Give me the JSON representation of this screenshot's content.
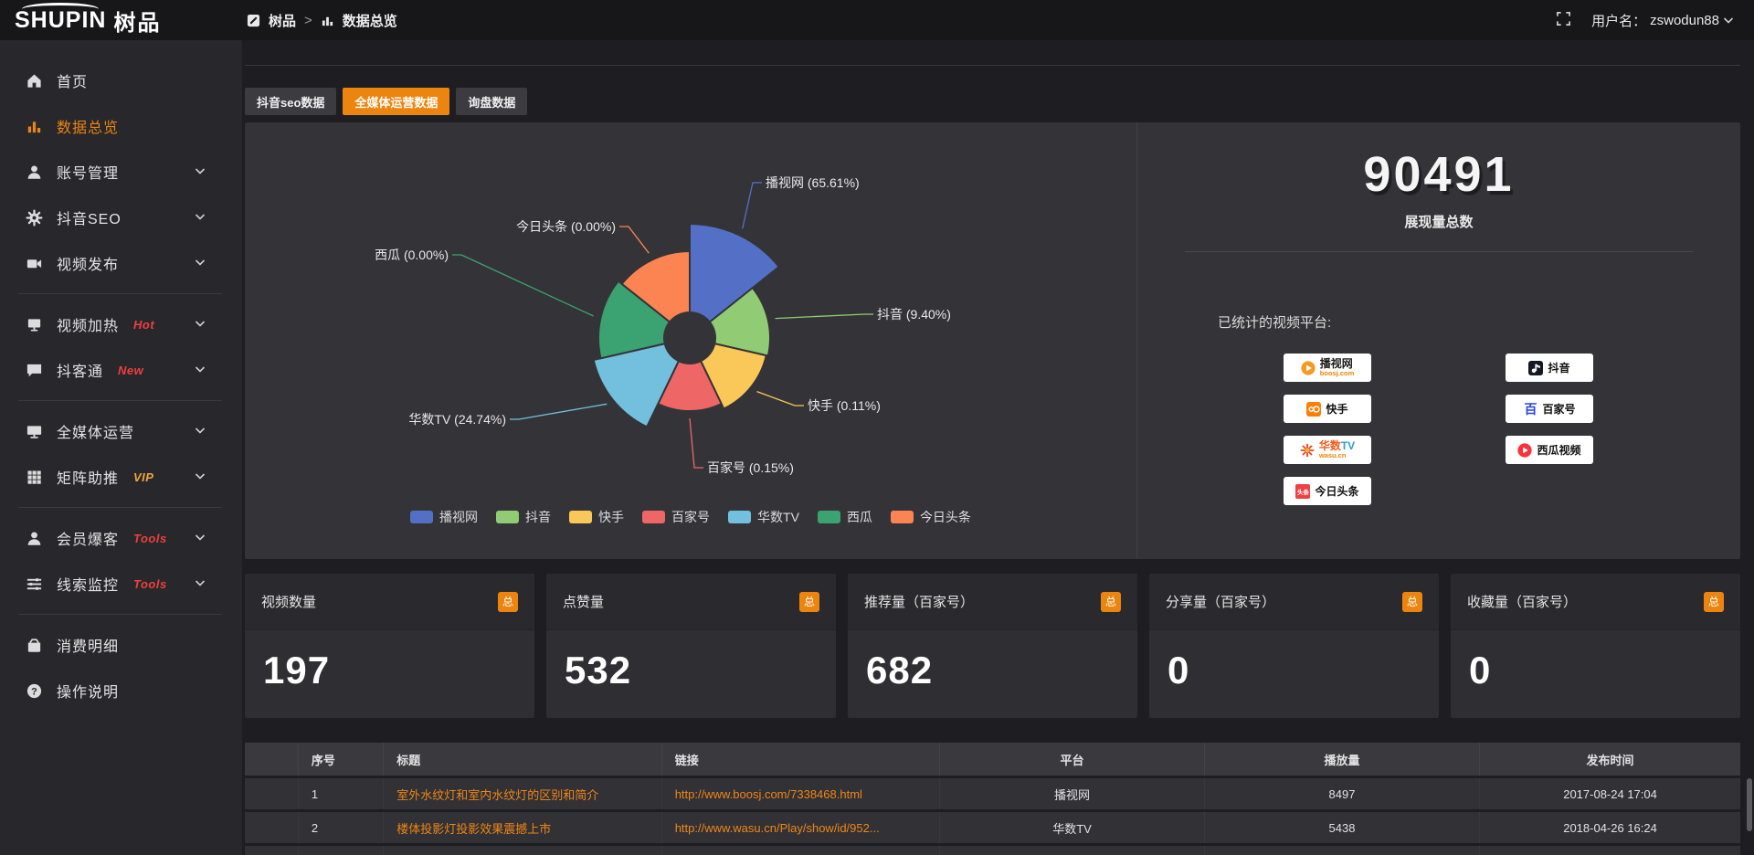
{
  "topbar": {
    "logo_main": "SHUPIN",
    "logo_cn": "树品",
    "breadcrumb": [
      {
        "label": "树品",
        "icon": "app-icon"
      },
      {
        "label": "数据总览",
        "icon": "bars-icon"
      }
    ],
    "breadcrumb_separator": ">",
    "user_label": "用户名：",
    "username": "zswodun88"
  },
  "sidebar": {
    "items": [
      {
        "icon": "home",
        "label": "首页",
        "active": false,
        "chevron": false,
        "badge": "",
        "badge_color": "",
        "divider_after": false
      },
      {
        "icon": "chart",
        "label": "数据总览",
        "active": true,
        "chevron": false,
        "badge": "",
        "badge_color": "",
        "divider_after": false
      },
      {
        "icon": "user",
        "label": "账号管理",
        "active": false,
        "chevron": true,
        "badge": "",
        "badge_color": "",
        "divider_after": false
      },
      {
        "icon": "gear",
        "label": "抖音SEO",
        "active": false,
        "chevron": true,
        "badge": "",
        "badge_color": "",
        "divider_after": false
      },
      {
        "icon": "video",
        "label": "视频发布",
        "active": false,
        "chevron": true,
        "badge": "",
        "badge_color": "",
        "divider_after": true
      },
      {
        "icon": "screen",
        "label": "视频加热",
        "active": false,
        "chevron": true,
        "badge": "Hot",
        "badge_color": "#f03e3e",
        "divider_after": false
      },
      {
        "icon": "chat",
        "label": "抖客通",
        "active": false,
        "chevron": true,
        "badge": "New",
        "badge_color": "#f03e3e",
        "divider_after": true
      },
      {
        "icon": "monitor",
        "label": "全媒体运营",
        "active": false,
        "chevron": true,
        "badge": "",
        "badge_color": "",
        "divider_after": false
      },
      {
        "icon": "grid",
        "label": "矩阵助推",
        "active": false,
        "chevron": true,
        "badge": "VIP",
        "badge_color": "#f0a43c",
        "divider_after": true
      },
      {
        "icon": "user",
        "label": "会员爆客",
        "active": false,
        "chevron": true,
        "badge": "Tools",
        "badge_color": "#f03e3e",
        "divider_after": false
      },
      {
        "icon": "sliders",
        "label": "线索监控",
        "active": false,
        "chevron": true,
        "badge": "Tools",
        "badge_color": "#f03e3e",
        "divider_after": true
      },
      {
        "icon": "wallet",
        "label": "消费明细",
        "active": false,
        "chevron": false,
        "badge": "",
        "badge_color": "",
        "divider_after": false
      },
      {
        "icon": "question",
        "label": "操作说明",
        "active": false,
        "chevron": false,
        "badge": "",
        "badge_color": "",
        "divider_after": false
      }
    ]
  },
  "tabs": [
    {
      "label": "抖音seo数据",
      "active": false
    },
    {
      "label": "全媒体运营数据",
      "active": true
    },
    {
      "label": "询盘数据",
      "active": false
    }
  ],
  "chart_data": {
    "type": "pie",
    "variant": "nightingale-rose",
    "legend_position": "bottom",
    "items": [
      {
        "name": "播视网",
        "pct": 65.61,
        "color": "#5470c6"
      },
      {
        "name": "抖音",
        "pct": 9.4,
        "color": "#91cc75"
      },
      {
        "name": "快手",
        "pct": 0.11,
        "color": "#fac858"
      },
      {
        "name": "百家号",
        "pct": 0.15,
        "color": "#ee6666"
      },
      {
        "name": "华数TV",
        "pct": 24.74,
        "color": "#73c0de"
      },
      {
        "name": "西瓜",
        "pct": 0.0,
        "color": "#3ba272"
      },
      {
        "name": "今日头条",
        "pct": 0.0,
        "color": "#fc8452"
      }
    ],
    "legend": [
      "播视网",
      "抖音",
      "快手",
      "百家号",
      "华数TV",
      "西瓜",
      "今日头条"
    ]
  },
  "summary": {
    "value": "90491",
    "caption": "展现量总数",
    "platforms_title": "已统计的视频平台:",
    "platforms": [
      {
        "name": "播视网",
        "icon": "boosj",
        "parts": [
          {
            "t": "播视网",
            "c": "#1a1a1a"
          }
        ],
        "sub": {
          "t": "boosj.com",
          "c": "#f08300"
        }
      },
      {
        "name": "抖音",
        "icon": "douyin",
        "parts": [
          {
            "t": "抖音",
            "c": "#111111"
          }
        ],
        "sub": null
      },
      {
        "name": "快手",
        "icon": "kuaishou",
        "parts": [
          {
            "t": "快手",
            "c": "#111111"
          }
        ],
        "sub": null
      },
      {
        "name": "百家号",
        "icon": "baijia",
        "parts": [
          {
            "t": "百家号",
            "c": "#111111"
          }
        ],
        "sub": null
      },
      {
        "name": "华数TV",
        "icon": "wasu",
        "parts": [
          {
            "t": "华数",
            "c": "#f25c1f"
          },
          {
            "t": "TV",
            "c": "#2f9bd6"
          }
        ],
        "sub": {
          "t": "wasu.cn",
          "c": "#f08300"
        }
      },
      {
        "name": "西瓜视频",
        "icon": "xigua",
        "parts": [
          {
            "t": "西瓜视频",
            "c": "#111111"
          }
        ],
        "sub": null
      },
      {
        "name": "今日头条",
        "icon": "toutiao",
        "parts": [
          {
            "t": "今日头条",
            "c": "#111111"
          }
        ],
        "sub": null
      }
    ]
  },
  "stat_cards": [
    {
      "label": "视频数量",
      "badge": "总",
      "value": "197"
    },
    {
      "label": "点赞量",
      "badge": "总",
      "value": "532"
    },
    {
      "label": "推荐量（百家号）",
      "badge": "总",
      "value": "682"
    },
    {
      "label": "分享量（百家号）",
      "badge": "总",
      "value": "0"
    },
    {
      "label": "收藏量（百家号）",
      "badge": "总",
      "value": "0"
    }
  ],
  "table": {
    "columns": [
      "序号",
      "标题",
      "链接",
      "平台",
      "播放量",
      "发布时间"
    ],
    "rows": [
      {
        "no": "1",
        "title": "室外水纹灯和室内水纹灯的区别和简介",
        "link": "http://www.boosj.com/7338468.html",
        "platform": "播视网",
        "plays": "8497",
        "time": "2017-08-24 17:04"
      },
      {
        "no": "2",
        "title": "楼体投影灯投影效果震撼上市",
        "link": "http://www.wasu.cn/Play/show/id/952...",
        "platform": "华数TV",
        "plays": "5438",
        "time": "2018-04-26 16:24"
      },
      {
        "no": "",
        "title": "",
        "link": "",
        "platform": "",
        "plays": "",
        "time": ""
      }
    ]
  },
  "colors": {
    "accent": "#ec850f",
    "hot": "#f03e3e",
    "vip": "#f0a43c",
    "link": "#f08616"
  }
}
